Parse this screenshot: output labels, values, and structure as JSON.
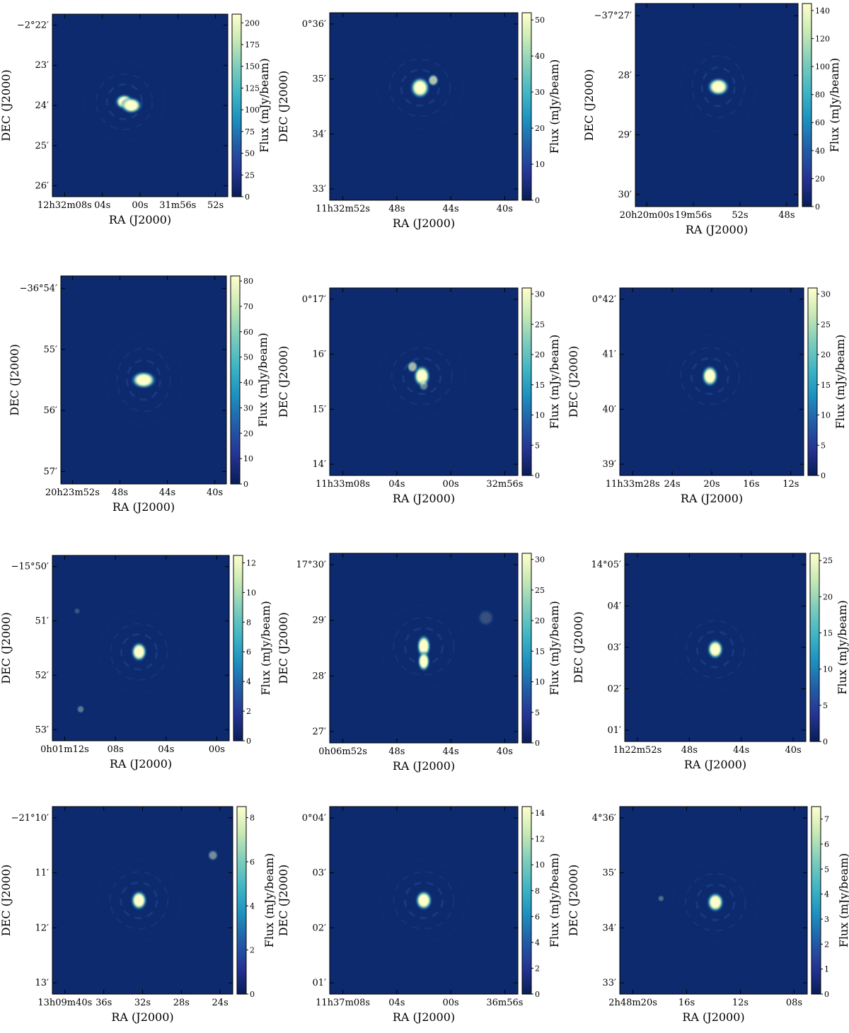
{
  "colors": {
    "background": "#0d2a6e",
    "colormap": [
      "#081d58",
      "#253494",
      "#225ea8",
      "#1d91c0",
      "#41b6c4",
      "#7fcdbb",
      "#c7e9b4",
      "#ffffcc"
    ]
  },
  "chart_data": [
    {
      "type": "heatmap",
      "xlabel": "RA (J2000)",
      "ylabel": "DEC (J2000)",
      "colorbar_label": "Flux (mJy/beam)",
      "x_ticks": [
        "12h32m08s",
        "04s",
        "00s",
        "31m56s",
        "52s"
      ],
      "y_ticks": [
        "−2°22′",
        "23′",
        "24′",
        "25′",
        "26′"
      ],
      "colorbar_ticks": [
        "0",
        "25",
        "50",
        "75",
        "100",
        "125",
        "150",
        "175",
        "200"
      ],
      "colorbar_range": [
        0,
        210
      ],
      "sources": [
        {
          "ra_frac": 0.41,
          "dec_frac": 0.48,
          "rx": 0.035,
          "ry": 0.028,
          "peak": 1.0
        },
        {
          "ra_frac": 0.45,
          "dec_frac": 0.5,
          "rx": 0.04,
          "ry": 0.03,
          "peak": 1.0
        }
      ]
    },
    {
      "type": "heatmap",
      "xlabel": "RA (J2000)",
      "ylabel": "DEC (J2000)",
      "colorbar_label": "Flux (mJy/beam)",
      "x_ticks": [
        "11h32m52s",
        "48s",
        "44s",
        "40s"
      ],
      "y_ticks": [
        "0°36′",
        "35′",
        "34′",
        "33′"
      ],
      "colorbar_ticks": [
        "0",
        "10",
        "20",
        "30",
        "40",
        "50"
      ],
      "colorbar_range": [
        0,
        52
      ],
      "sources": [
        {
          "ra_frac": 0.48,
          "dec_frac": 0.4,
          "rx": 0.035,
          "ry": 0.038,
          "peak": 1.0
        },
        {
          "ra_frac": 0.55,
          "dec_frac": 0.36,
          "rx": 0.02,
          "ry": 0.022,
          "peak": 0.7
        }
      ]
    },
    {
      "type": "heatmap",
      "xlabel": "RA (J2000)",
      "ylabel": "DEC (J2000)",
      "colorbar_label": "Flux (mJy/beam)",
      "x_ticks": [
        "20h20m00s",
        "19m56s",
        "52s",
        "48s"
      ],
      "y_ticks": [
        "−37°27′",
        "28′",
        "29′",
        "30′"
      ],
      "colorbar_ticks": [
        "0",
        "20",
        "40",
        "60",
        "80",
        "100",
        "120",
        "140"
      ],
      "colorbar_range": [
        0,
        145
      ],
      "sources": [
        {
          "ra_frac": 0.51,
          "dec_frac": 0.41,
          "rx": 0.045,
          "ry": 0.03,
          "peak": 1.0
        }
      ]
    },
    {
      "type": "heatmap",
      "xlabel": "RA (J2000)",
      "ylabel": "DEC (J2000)",
      "colorbar_label": "Flux (mJy/beam)",
      "x_ticks": [
        "20h23m52s",
        "48s",
        "44s",
        "40s"
      ],
      "y_ticks": [
        "−36°54′",
        "55′",
        "56′",
        "57′"
      ],
      "colorbar_ticks": [
        "0",
        "10",
        "20",
        "30",
        "40",
        "50",
        "60",
        "70",
        "80"
      ],
      "colorbar_range": [
        0,
        82
      ],
      "sources": [
        {
          "ra_frac": 0.5,
          "dec_frac": 0.5,
          "rx": 0.05,
          "ry": 0.028,
          "peak": 1.0
        }
      ]
    },
    {
      "type": "heatmap",
      "xlabel": "RA (J2000)",
      "ylabel": "DEC (J2000)",
      "colorbar_label": "Flux (mJy/beam)",
      "x_ticks": [
        "11h33m08s",
        "04s",
        "00s",
        "32m56s"
      ],
      "y_ticks": [
        "0°17′",
        "16′",
        "15′",
        "14′"
      ],
      "colorbar_ticks": [
        "0",
        "5",
        "10",
        "15",
        "20",
        "25",
        "30"
      ],
      "colorbar_range": [
        0,
        31
      ],
      "sources": [
        {
          "ra_frac": 0.49,
          "dec_frac": 0.47,
          "rx": 0.03,
          "ry": 0.038,
          "peak": 1.0
        },
        {
          "ra_frac": 0.44,
          "dec_frac": 0.42,
          "rx": 0.02,
          "ry": 0.022,
          "peak": 0.65
        },
        {
          "ra_frac": 0.5,
          "dec_frac": 0.52,
          "rx": 0.018,
          "ry": 0.02,
          "peak": 0.4
        }
      ]
    },
    {
      "type": "heatmap",
      "xlabel": "RA (J2000)",
      "ylabel": "DEC (J2000)",
      "colorbar_label": "Flux (mJy/beam)",
      "x_ticks": [
        "11h33m28s",
        "24s",
        "20s",
        "16s",
        "12s"
      ],
      "y_ticks": [
        "0°42′",
        "41′",
        "40′",
        "39′"
      ],
      "colorbar_ticks": [
        "0",
        "5",
        "10",
        "15",
        "20",
        "25",
        "30"
      ],
      "colorbar_range": [
        0,
        31
      ],
      "sources": [
        {
          "ra_frac": 0.49,
          "dec_frac": 0.47,
          "rx": 0.03,
          "ry": 0.038,
          "peak": 1.0
        }
      ]
    },
    {
      "type": "heatmap",
      "xlabel": "RA (J2000)",
      "ylabel": "DEC (J2000)",
      "colorbar_label": "Flux (mJy/beam)",
      "x_ticks": [
        "0h01m12s",
        "08s",
        "04s",
        "00s"
      ],
      "y_ticks": [
        "−15°50′",
        "51′",
        "52′",
        "53′"
      ],
      "colorbar_ticks": [
        "0",
        "2",
        "4",
        "6",
        "8",
        "10",
        "12"
      ],
      "colorbar_range": [
        0,
        12.5
      ],
      "sources": [
        {
          "ra_frac": 0.49,
          "dec_frac": 0.52,
          "rx": 0.03,
          "ry": 0.035,
          "peak": 1.0
        },
        {
          "ra_frac": 0.16,
          "dec_frac": 0.83,
          "rx": 0.015,
          "ry": 0.015,
          "peak": 0.35
        },
        {
          "ra_frac": 0.14,
          "dec_frac": 0.3,
          "rx": 0.012,
          "ry": 0.012,
          "peak": 0.2
        }
      ]
    },
    {
      "type": "heatmap",
      "xlabel": "RA (J2000)",
      "ylabel": "DEC (J2000)",
      "colorbar_label": "Flux (mJy/beam)",
      "x_ticks": [
        "0h06m52s",
        "48s",
        "44s",
        "40s"
      ],
      "y_ticks": [
        "17°30′",
        "29′",
        "28′",
        "27′"
      ],
      "colorbar_ticks": [
        "0",
        "5",
        "10",
        "15",
        "20",
        "25",
        "30"
      ],
      "colorbar_range": [
        0,
        31
      ],
      "sources": [
        {
          "ra_frac": 0.5,
          "dec_frac": 0.49,
          "rx": 0.025,
          "ry": 0.04,
          "peak": 1.0
        },
        {
          "ra_frac": 0.5,
          "dec_frac": 0.57,
          "rx": 0.022,
          "ry": 0.035,
          "peak": 1.0
        },
        {
          "ra_frac": 0.83,
          "dec_frac": 0.34,
          "rx": 0.03,
          "ry": 0.03,
          "peak": 0.18
        }
      ]
    },
    {
      "type": "heatmap",
      "xlabel": "RA (J2000)",
      "ylabel": "DEC (J2000)",
      "colorbar_label": "Flux (mJy/beam)",
      "x_ticks": [
        "1h22m52s",
        "48s",
        "44s",
        "40s"
      ],
      "y_ticks": [
        "14°05′",
        "04′",
        "03′",
        "02′",
        "01′"
      ],
      "colorbar_ticks": [
        "0",
        "5",
        "10",
        "15",
        "20",
        "25"
      ],
      "colorbar_range": [
        0,
        26
      ],
      "sources": [
        {
          "ra_frac": 0.5,
          "dec_frac": 0.51,
          "rx": 0.03,
          "ry": 0.035,
          "peak": 1.0
        }
      ]
    },
    {
      "type": "heatmap",
      "xlabel": "RA (J2000)",
      "ylabel": "DEC (J2000)",
      "colorbar_label": "Flux (mJy/beam)",
      "x_ticks": [
        "13h09m40s",
        "36s",
        "32s",
        "28s",
        "24s"
      ],
      "y_ticks": [
        "−21°10′",
        "11′",
        "12′",
        "13′"
      ],
      "colorbar_ticks": [
        "0",
        "2",
        "4",
        "6",
        "8"
      ],
      "colorbar_range": [
        0,
        8.5
      ],
      "sources": [
        {
          "ra_frac": 0.48,
          "dec_frac": 0.5,
          "rx": 0.03,
          "ry": 0.035,
          "peak": 1.0
        },
        {
          "ra_frac": 0.89,
          "dec_frac": 0.26,
          "rx": 0.02,
          "ry": 0.02,
          "peak": 0.45
        }
      ]
    },
    {
      "type": "heatmap",
      "xlabel": "RA (J2000)",
      "ylabel": "DEC (J2000)",
      "colorbar_label": "Flux (mJy/beam)",
      "x_ticks": [
        "11h37m08s",
        "04s",
        "00s",
        "36m56s"
      ],
      "y_ticks": [
        "0°04′",
        "03′",
        "02′",
        "01′"
      ],
      "colorbar_ticks": [
        "0",
        "2",
        "4",
        "6",
        "8",
        "10",
        "12",
        "14"
      ],
      "colorbar_range": [
        0,
        14.5
      ],
      "sources": [
        {
          "ra_frac": 0.5,
          "dec_frac": 0.5,
          "rx": 0.03,
          "ry": 0.035,
          "peak": 1.0
        }
      ]
    },
    {
      "type": "heatmap",
      "xlabel": "RA (J2000)",
      "ylabel": "DEC (J2000)",
      "colorbar_label": "Flux (mJy/beam)",
      "x_ticks": [
        "2h48m20s",
        "16s",
        "12s",
        "08s"
      ],
      "y_ticks": [
        "4°36′",
        "35′",
        "34′",
        "33′"
      ],
      "colorbar_ticks": [
        "0",
        "1",
        "2",
        "3",
        "4",
        "5",
        "6",
        "7"
      ],
      "colorbar_range": [
        0,
        7.5
      ],
      "sources": [
        {
          "ra_frac": 0.51,
          "dec_frac": 0.51,
          "rx": 0.03,
          "ry": 0.035,
          "peak": 1.0
        },
        {
          "ra_frac": 0.22,
          "dec_frac": 0.49,
          "rx": 0.012,
          "ry": 0.012,
          "peak": 0.3
        }
      ]
    }
  ]
}
